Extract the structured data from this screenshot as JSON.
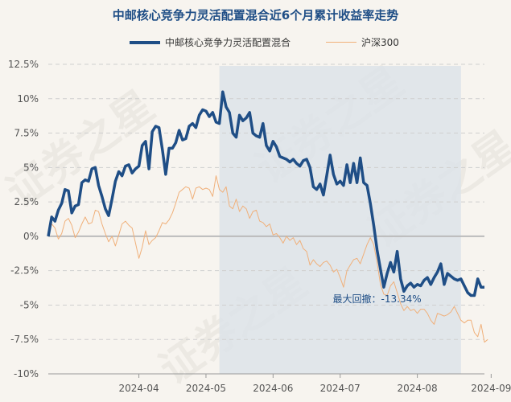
{
  "chart_data": {
    "type": "line",
    "title": "中邮核心竞争力灵活配置混合近6个月累计收益率走势",
    "watermark": "证券之星",
    "ylim": [
      -10,
      12.5
    ],
    "yticks": [
      12.5,
      10,
      7.5,
      5,
      2.5,
      0,
      -2.5,
      -5,
      -7.5,
      -10
    ],
    "ytick_labels": [
      "12.5%",
      "10%",
      "7.5%",
      "5%",
      "2.5%",
      "0%",
      "-2.5%",
      "-5%",
      "-7.5%",
      "-10%"
    ],
    "xticks": [
      {
        "pos": 27,
        "label": "2024-04"
      },
      {
        "pos": 47,
        "label": "2024-05"
      },
      {
        "pos": 67,
        "label": "2024-06"
      },
      {
        "pos": 87,
        "label": "2024-07"
      },
      {
        "pos": 110,
        "label": "2024-08"
      },
      {
        "pos": 132,
        "label": "2024-09"
      }
    ],
    "shade_range": [
      51,
      123
    ],
    "annotation": {
      "text": "最大回撤：-13.34%",
      "x": 98,
      "y": -4.8
    },
    "series": [
      {
        "name": "中邮核心竞争力灵活配置混合",
        "color": "#1f4e86",
        "width": 3.5,
        "values": [
          0,
          1.4,
          1.1,
          1.9,
          2.4,
          3.4,
          3.3,
          1.7,
          2.2,
          2.3,
          3.9,
          4.1,
          4.0,
          4.9,
          5.0,
          3.7,
          2.9,
          2.0,
          1.5,
          2.7,
          4.0,
          4.7,
          4.4,
          5.1,
          5.2,
          4.6,
          4.9,
          5.1,
          6.6,
          6.9,
          4.9,
          7.6,
          8.0,
          7.9,
          6.3,
          4.5,
          6.4,
          6.4,
          6.8,
          7.7,
          7.0,
          7.1,
          8.0,
          8.2,
          7.9,
          8.8,
          9.2,
          9.1,
          8.7,
          9.0,
          8.3,
          8.2,
          10.5,
          9.4,
          9.0,
          7.5,
          7.2,
          8.8,
          8.4,
          8.6,
          9.0,
          7.5,
          7.3,
          7.2,
          8.2,
          6.6,
          6.2,
          6.9,
          6.5,
          5.8,
          5.7,
          5.6,
          5.4,
          5.6,
          5.3,
          5.1,
          5.5,
          5.6,
          5.0,
          3.6,
          3.4,
          3.8,
          3.0,
          4.4,
          5.9,
          4.5,
          3.8,
          4.0,
          3.7,
          5.2,
          3.9,
          5.3,
          3.9,
          5.7,
          3.9,
          3.7,
          2.4,
          0.8,
          -1.0,
          -2.4,
          -3.7,
          -2.7,
          -1.9,
          -2.6,
          -1.1,
          -3.1,
          -4.0,
          -3.6,
          -3.4,
          -3.7,
          -3.5,
          -3.6,
          -3.2,
          -3.0,
          -3.5,
          -3.0,
          -2.6,
          -2.0,
          -3.5,
          -2.7,
          -2.9,
          -3.1,
          -3.2,
          -3.1,
          -3.6,
          -4.1,
          -4.3,
          -4.3,
          -3.1,
          -3.7,
          -3.7
        ]
      },
      {
        "name": "沪深300",
        "color": "#f0b07a",
        "width": 1,
        "values": [
          0,
          0.9,
          0.6,
          -0.2,
          0.2,
          1.1,
          1.3,
          0.8,
          -0.1,
          0.3,
          0.9,
          1.4,
          0.9,
          1.0,
          1.9,
          1.8,
          0.9,
          0.2,
          -0.4,
          0.0,
          -0.7,
          0.1,
          0.9,
          1.1,
          0.8,
          0.6,
          -0.5,
          -1.6,
          -0.8,
          0.4,
          -0.6,
          -0.3,
          -0.1,
          0.4,
          1.0,
          0.9,
          1.2,
          1.7,
          2.4,
          3.2,
          3.4,
          3.6,
          3.5,
          2.7,
          3.5,
          3.6,
          3.4,
          3.5,
          3.4,
          2.9,
          4.4,
          3.4,
          3.2,
          3.6,
          2.2,
          2.0,
          2.7,
          1.8,
          2.2,
          2.0,
          1.3,
          1.8,
          1.9,
          1.1,
          1.0,
          0.7,
          0.9,
          0.1,
          0.2,
          -0.1,
          -0.5,
          0.0,
          -0.3,
          -0.1,
          -0.6,
          -0.3,
          -0.9,
          -1.1,
          -2.1,
          -1.7,
          -2.0,
          -2.2,
          -1.9,
          -1.8,
          -2.1,
          -2.6,
          -2.4,
          -3.0,
          -3.7,
          -2.5,
          -2.1,
          -1.7,
          -1.6,
          -2.0,
          -1.3,
          -0.6,
          -0.1,
          -0.6,
          -1.9,
          -3.5,
          -4.2,
          -4.3,
          -3.6,
          -3.3,
          -4.1,
          -4.9,
          -5.4,
          -5.1,
          -5.4,
          -5.3,
          -5.6,
          -5.3,
          -5.3,
          -5.6,
          -6.1,
          -6.4,
          -5.6,
          -5.7,
          -5.8,
          -5.7,
          -5.5,
          -5.1,
          -5.6,
          -6.1,
          -6.3,
          -6.1,
          -6.1,
          -7.0,
          -7.3,
          -6.4,
          -7.7,
          -7.5
        ]
      }
    ]
  }
}
